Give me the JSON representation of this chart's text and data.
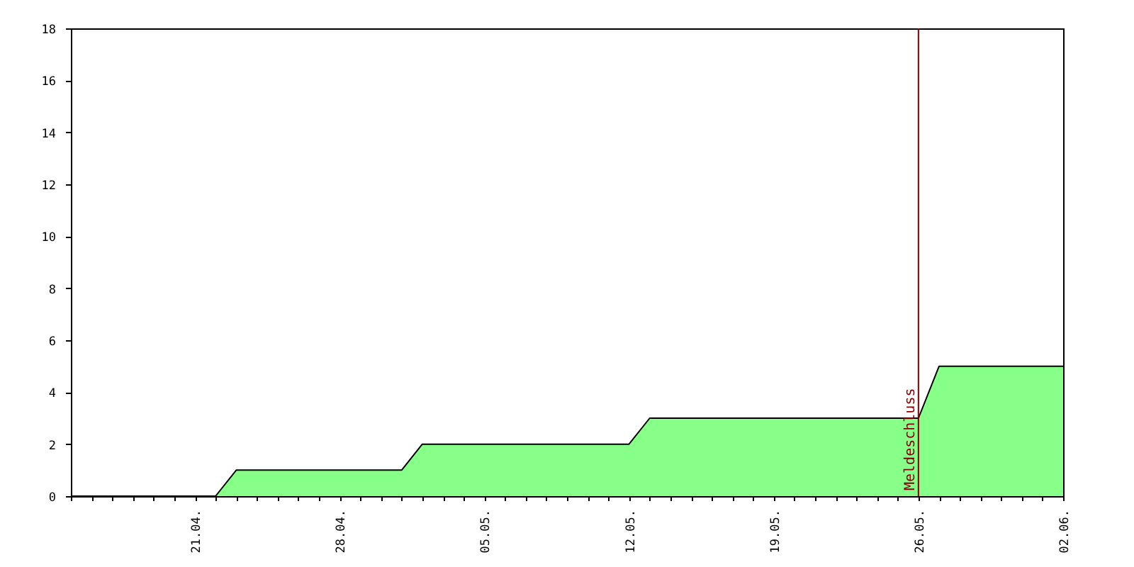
{
  "chart_data": {
    "type": "area",
    "x": [
      "--04-15",
      "--04-22",
      "--04-23",
      "--05-01",
      "--05-02",
      "--05-12",
      "--05-13",
      "--05-26",
      "--05-27",
      "--06-02"
    ],
    "series": [
      {
        "color": "#88ff88",
        "values": [
          0,
          0,
          1,
          1,
          2,
          2,
          3,
          3,
          5,
          5
        ]
      }
    ],
    "xlim": [
      "--04-15",
      "--06-02"
    ],
    "xticks": [
      {
        "value": "--04-15",
        "label": null
      },
      {
        "value": "--04-16",
        "label": null
      },
      {
        "value": "--04-17",
        "label": null
      },
      {
        "value": "--04-18",
        "label": null
      },
      {
        "value": "--04-19",
        "label": null
      },
      {
        "value": "--04-20",
        "label": null
      },
      {
        "value": "--04-21",
        "label": "21.04."
      },
      {
        "value": "--04-22",
        "label": null
      },
      {
        "value": "--04-23",
        "label": null
      },
      {
        "value": "--04-24",
        "label": null
      },
      {
        "value": "--04-25",
        "label": null
      },
      {
        "value": "--04-26",
        "label": null
      },
      {
        "value": "--04-27",
        "label": null
      },
      {
        "value": "--04-28",
        "label": "28.04."
      },
      {
        "value": "--04-29",
        "label": null
      },
      {
        "value": "--04-30",
        "label": null
      },
      {
        "value": "--05-01",
        "label": null
      },
      {
        "value": "--05-02",
        "label": null
      },
      {
        "value": "--05-03",
        "label": null
      },
      {
        "value": "--05-04",
        "label": null
      },
      {
        "value": "--05-05",
        "label": "05.05."
      },
      {
        "value": "--05-06",
        "label": null
      },
      {
        "value": "--05-07",
        "label": null
      },
      {
        "value": "--05-08",
        "label": null
      },
      {
        "value": "--05-09",
        "label": null
      },
      {
        "value": "--05-10",
        "label": null
      },
      {
        "value": "--05-11",
        "label": null
      },
      {
        "value": "--05-12",
        "label": "12.05."
      },
      {
        "value": "--05-13",
        "label": null
      },
      {
        "value": "--05-14",
        "label": null
      },
      {
        "value": "--05-15",
        "label": null
      },
      {
        "value": "--05-16",
        "label": null
      },
      {
        "value": "--05-17",
        "label": null
      },
      {
        "value": "--05-18",
        "label": null
      },
      {
        "value": "--05-19",
        "label": "19.05."
      },
      {
        "value": "--05-20",
        "label": null
      },
      {
        "value": "--05-21",
        "label": null
      },
      {
        "value": "--05-22",
        "label": null
      },
      {
        "value": "--05-23",
        "label": null
      },
      {
        "value": "--05-24",
        "label": null
      },
      {
        "value": "--05-25",
        "label": null
      },
      {
        "value": "--05-26",
        "label": "26.05."
      },
      {
        "value": "--05-27",
        "label": null
      },
      {
        "value": "--05-28",
        "label": null
      },
      {
        "value": "--05-29",
        "label": null
      },
      {
        "value": "--05-30",
        "label": null
      },
      {
        "value": "--05-31",
        "label": null
      },
      {
        "value": "--06-01",
        "label": null
      },
      {
        "value": "--06-02",
        "label": "02.06."
      }
    ],
    "ylim": [
      0,
      18
    ],
    "yticks": [
      0,
      2,
      4,
      6,
      8,
      10,
      12,
      14,
      16,
      18
    ],
    "grid": false,
    "ref_lines": [
      {
        "axis": "x",
        "value": "--05-26",
        "label": "Meldeschluss",
        "color": "#800000"
      }
    ]
  }
}
